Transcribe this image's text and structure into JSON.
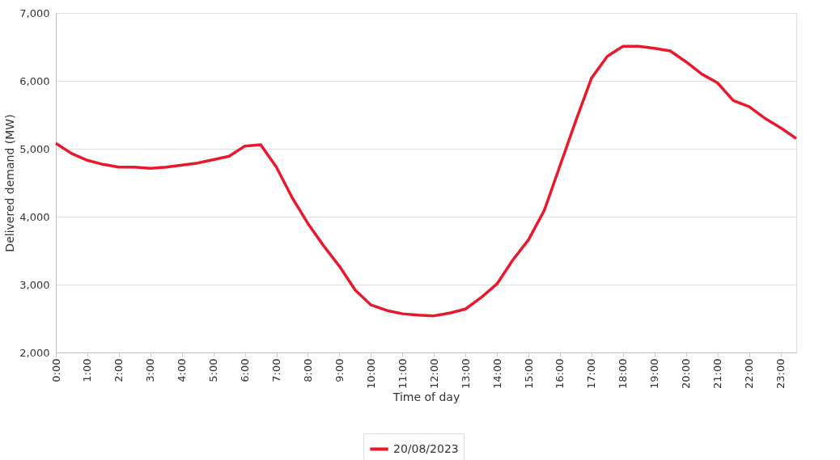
{
  "chart_data": {
    "type": "line",
    "xlabel": "Time of day",
    "ylabel": "Delivered demand (MW)",
    "x": [
      0,
      0.5,
      1,
      1.5,
      2,
      2.5,
      3,
      3.5,
      4,
      4.5,
      5,
      5.5,
      6,
      6.5,
      7,
      7.5,
      8,
      8.5,
      9,
      9.5,
      10,
      10.5,
      11,
      11.5,
      12,
      12.5,
      13,
      13.5,
      14,
      14.5,
      15,
      15.5,
      16,
      16.5,
      17,
      17.5,
      18,
      18.5,
      19,
      19.5,
      20,
      20.5,
      21,
      21.5,
      22,
      22.5,
      23,
      23.5
    ],
    "series": [
      {
        "name": "20/08/2023",
        "color": "#e8192c",
        "values": [
          5080,
          4930,
          4830,
          4770,
          4730,
          4730,
          4710,
          4730,
          4760,
          4790,
          4840,
          4890,
          5040,
          5060,
          4730,
          4280,
          3900,
          3570,
          3270,
          2920,
          2700,
          2620,
          2570,
          2550,
          2540,
          2580,
          2640,
          2810,
          3010,
          3360,
          3660,
          4090,
          4750,
          5410,
          6040,
          6360,
          6510,
          6510,
          6480,
          6440,
          6280,
          6100,
          5970,
          5710,
          5620,
          5450,
          5310,
          5150
        ]
      }
    ],
    "xlim": [
      0,
      23.5
    ],
    "xticks": [
      {
        "value": 0,
        "label": "0:00"
      },
      {
        "value": 1,
        "label": "1:00"
      },
      {
        "value": 2,
        "label": "2:00"
      },
      {
        "value": 3,
        "label": "3:00"
      },
      {
        "value": 4,
        "label": "4:00"
      },
      {
        "value": 5,
        "label": "5:00"
      },
      {
        "value": 6,
        "label": "6:00"
      },
      {
        "value": 7,
        "label": "7:00"
      },
      {
        "value": 8,
        "label": "8:00"
      },
      {
        "value": 9,
        "label": "9:00"
      },
      {
        "value": 10,
        "label": "10:00"
      },
      {
        "value": 11,
        "label": "11:00"
      },
      {
        "value": 12,
        "label": "12:00"
      },
      {
        "value": 13,
        "label": "13:00"
      },
      {
        "value": 14,
        "label": "14:00"
      },
      {
        "value": 15,
        "label": "15:00"
      },
      {
        "value": 16,
        "label": "16:00"
      },
      {
        "value": 17,
        "label": "17:00"
      },
      {
        "value": 18,
        "label": "18:00"
      },
      {
        "value": 19,
        "label": "19:00"
      },
      {
        "value": 20,
        "label": "20:00"
      },
      {
        "value": 21,
        "label": "21:00"
      },
      {
        "value": 22,
        "label": "22:00"
      },
      {
        "value": 23,
        "label": "23:00"
      }
    ],
    "ylim": [
      2000,
      7000
    ],
    "yticks": [
      {
        "value": 2000,
        "label": "2,000"
      },
      {
        "value": 3000,
        "label": "3,000"
      },
      {
        "value": 4000,
        "label": "4,000"
      },
      {
        "value": 5000,
        "label": "5,000"
      },
      {
        "value": 6000,
        "label": "6,000"
      },
      {
        "value": 7000,
        "label": "7,000"
      }
    ],
    "grid": "y",
    "legend": "bottom",
    "marker": "none",
    "line_style": "solid"
  }
}
